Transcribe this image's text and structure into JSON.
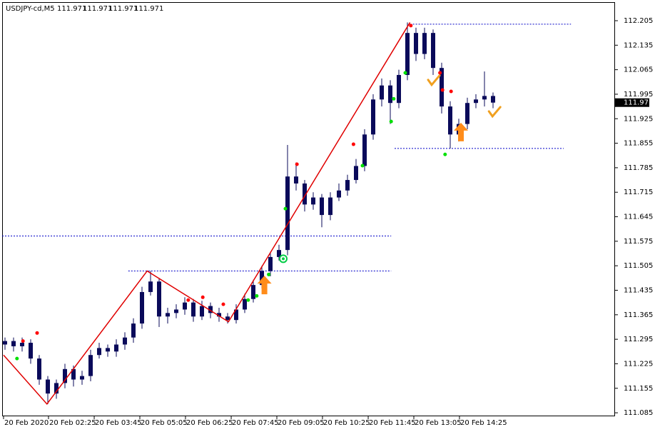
{
  "chart_data": {
    "type": "candlestick",
    "symbol": "USDJPY-cd,M5",
    "header_prices": [
      111.971,
      111.971,
      111.971,
      111.971
    ],
    "last_price": 111.971,
    "color": "#0a0a5a",
    "x": [
      0,
      1,
      2,
      3,
      4,
      5,
      6,
      7,
      8,
      9,
      10,
      11,
      12,
      13,
      14,
      15,
      16,
      17,
      18,
      19,
      20,
      21,
      22,
      23,
      24,
      25,
      26,
      27,
      28,
      29,
      30,
      31,
      32,
      33,
      34,
      35,
      36,
      37,
      38,
      39,
      40,
      41,
      42,
      43,
      44,
      45,
      46,
      47,
      48,
      49,
      50,
      51,
      52,
      53,
      54,
      55,
      56,
      57
    ],
    "open": [
      111.28,
      111.29,
      111.275,
      111.285,
      111.24,
      111.18,
      111.14,
      111.17,
      111.21,
      111.18,
      111.19,
      111.25,
      111.27,
      111.26,
      111.28,
      111.3,
      111.34,
      111.43,
      111.46,
      111.36,
      111.37,
      111.38,
      111.4,
      111.36,
      111.39,
      111.37,
      111.36,
      111.35,
      111.38,
      111.41,
      111.45,
      111.49,
      111.53,
      111.55,
      111.76,
      111.74,
      111.68,
      111.7,
      111.65,
      111.7,
      111.72,
      111.75,
      111.79,
      111.88,
      111.98,
      112.02,
      111.97,
      112.05,
      112.17,
      112.11,
      112.17,
      112.07,
      111.96,
      111.88,
      111.91,
      111.97,
      111.98,
      111.99
    ],
    "high": [
      111.3,
      111.3,
      111.3,
      111.295,
      111.25,
      111.19,
      111.18,
      111.225,
      111.22,
      111.205,
      111.265,
      111.285,
      111.28,
      111.295,
      111.315,
      111.355,
      111.445,
      111.49,
      111.47,
      111.385,
      111.395,
      111.415,
      111.41,
      111.405,
      111.4,
      111.385,
      111.37,
      111.395,
      111.425,
      111.465,
      111.505,
      111.545,
      111.565,
      111.85,
      111.8,
      111.75,
      111.715,
      111.71,
      111.715,
      111.74,
      111.765,
      111.81,
      111.895,
      111.995,
      112.04,
      112.035,
      112.065,
      112.2,
      112.185,
      112.185,
      112.18,
      112.085,
      111.975,
      111.925,
      111.985,
      111.995,
      112.06,
      112.0
    ],
    "low": [
      111.265,
      111.26,
      111.26,
      111.225,
      111.165,
      111.11,
      111.125,
      111.155,
      111.16,
      111.165,
      111.175,
      111.24,
      111.245,
      111.245,
      111.265,
      111.285,
      111.325,
      111.42,
      111.33,
      111.34,
      111.355,
      111.365,
      111.345,
      111.35,
      111.355,
      111.345,
      111.34,
      111.34,
      111.37,
      111.4,
      111.44,
      111.475,
      111.52,
      111.535,
      111.72,
      111.66,
      111.665,
      111.615,
      111.635,
      111.69,
      111.705,
      111.74,
      111.775,
      111.865,
      111.96,
      111.91,
      111.955,
      112.035,
      112.09,
      112.095,
      112.05,
      111.94,
      111.84,
      111.86,
      111.895,
      111.955,
      111.96,
      111.955
    ],
    "close": [
      111.29,
      111.275,
      111.285,
      111.24,
      111.18,
      111.14,
      111.17,
      111.21,
      111.18,
      111.19,
      111.25,
      111.27,
      111.26,
      111.28,
      111.3,
      111.34,
      111.43,
      111.46,
      111.36,
      111.37,
      111.38,
      111.4,
      111.36,
      111.39,
      111.37,
      111.36,
      111.35,
      111.38,
      111.41,
      111.45,
      111.49,
      111.53,
      111.55,
      111.76,
      111.74,
      111.68,
      111.7,
      111.65,
      111.7,
      111.72,
      111.75,
      111.79,
      111.88,
      111.98,
      112.02,
      111.97,
      112.05,
      112.17,
      112.11,
      112.17,
      112.07,
      111.96,
      111.88,
      111.91,
      111.97,
      111.98,
      111.99,
      111.971
    ],
    "zigzag": {
      "color": "#e00000",
      "x": [
        -0.17,
        4.9,
        16.6,
        26.1,
        47.3
      ],
      "values": [
        111.25,
        111.11,
        111.49,
        111.345,
        112.2
      ]
    },
    "levels": [
      {
        "value": 112.195,
        "from": 47.3,
        "to": 66.1
      },
      {
        "value": 111.84,
        "from": 45.5,
        "to": 65.25
      },
      {
        "value": 111.59,
        "from": -0.33,
        "to": 45.1
      },
      {
        "value": 111.49,
        "from": 14.4,
        "to": 45.1
      }
    ],
    "level_color": "#0000c8",
    "red_dots": {
      "color": "#ff0000",
      "x": [
        2.1,
        3.75,
        21.4,
        23.1,
        25.5,
        34.1,
        40.7,
        47.4,
        50.8,
        51.1,
        52.1
      ],
      "values": [
        111.29,
        111.313,
        111.407,
        111.415,
        111.395,
        111.795,
        111.852,
        112.191,
        112.056,
        112.007,
        112.003
      ]
    },
    "green_dots": {
      "color": "#00e000",
      "x": [
        1.4,
        28.4,
        29.4,
        30.8,
        32.75,
        41.75,
        45.1,
        45.4,
        46.75,
        51.4
      ],
      "values": [
        111.24,
        111.407,
        111.419,
        111.48,
        111.668,
        111.791,
        111.917,
        111.982,
        112.056,
        111.823
      ]
    },
    "signal": {
      "color": "#00cc44",
      "x": 32.5,
      "value": 111.525
    },
    "arrows": {
      "color": "#ff8c1a",
      "x": [
        30.3,
        53.25
      ],
      "values": [
        111.448,
        111.885
      ]
    },
    "checks": {
      "color": "#f0a020",
      "x": [
        50,
        57.1
      ],
      "values": [
        112.032,
        111.942
      ]
    },
    "xlim": [
      -0.333,
      71.25
    ],
    "ylim": [
      111.075,
      112.258
    ],
    "yticks": [
      112.205,
      112.135,
      112.065,
      111.995,
      111.925,
      111.855,
      111.785,
      111.715,
      111.645,
      111.575,
      111.505,
      111.435,
      111.365,
      111.295,
      111.225,
      111.155,
      111.085
    ],
    "xticks": [
      {
        "value": -0.17,
        "label": "20 Feb 2020"
      },
      {
        "value": 5.08,
        "label": "20 Feb 02:25"
      },
      {
        "value": 10.42,
        "label": "20 Feb 03:45"
      },
      {
        "value": 15.75,
        "label": "20 Feb 05:05"
      },
      {
        "value": 21.08,
        "label": "20 Feb 06:25"
      },
      {
        "value": 26.42,
        "label": "20 Feb 07:45"
      },
      {
        "value": 31.75,
        "label": "20 Feb 09:05"
      },
      {
        "value": 37.08,
        "label": "20 Feb 10:25"
      },
      {
        "value": 42.42,
        "label": "20 Feb 11:45"
      },
      {
        "value": 47.75,
        "label": "20 Feb 13:05"
      },
      {
        "value": 53.08,
        "label": "20 Feb 14:25"
      }
    ]
  }
}
